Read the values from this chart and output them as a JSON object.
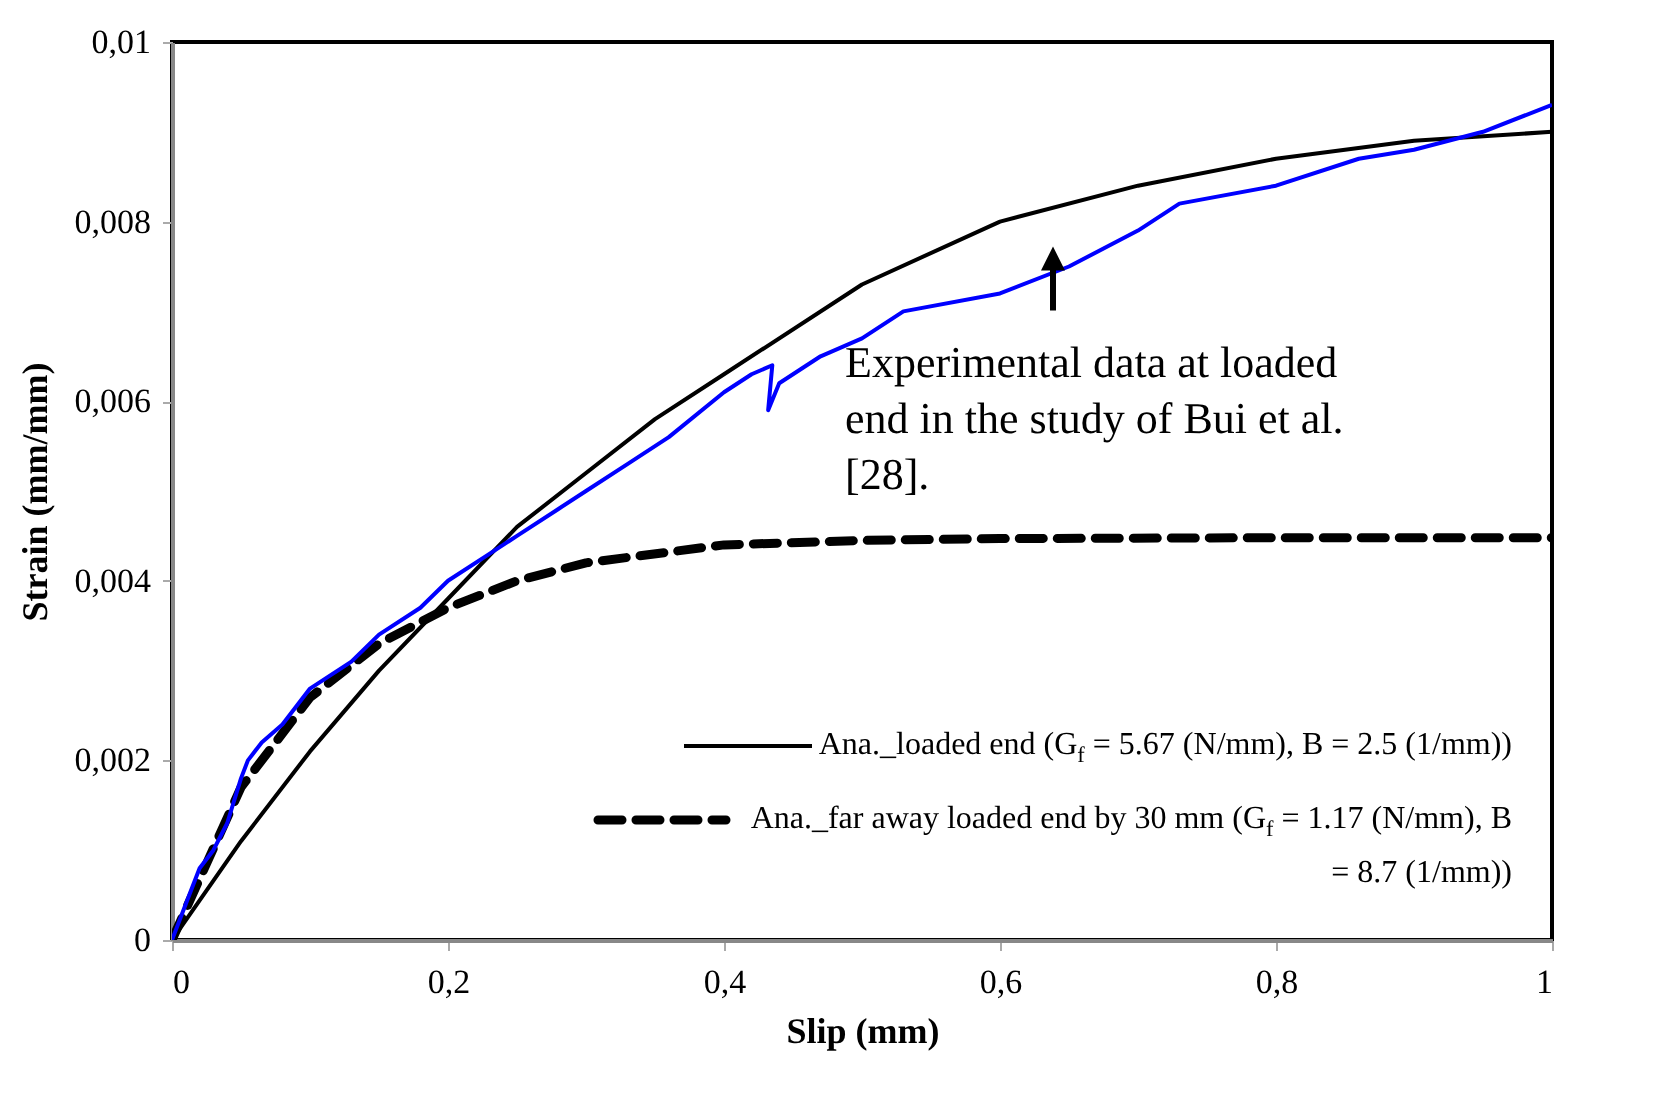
{
  "chart_data": {
    "type": "line",
    "xlabel": "Slip (mm)",
    "ylabel": "Strain (mm/mm)",
    "xlim": [
      0,
      1
    ],
    "ylim": [
      0,
      0.01
    ],
    "xticks": [
      0,
      {
        "value": 0.2,
        "label": "0,2"
      },
      {
        "value": 0.4,
        "label": "0,4"
      },
      {
        "value": 0.6,
        "label": "0,6"
      },
      {
        "value": 0.8,
        "label": "0,8"
      },
      1
    ],
    "yticks": [
      0,
      {
        "value": 0.002,
        "label": "0,002"
      },
      {
        "value": 0.004,
        "label": "0,004"
      },
      {
        "value": 0.006,
        "label": "0,006"
      },
      {
        "value": 0.008,
        "label": "0,008"
      },
      {
        "value": 0.01,
        "label": "0,01"
      }
    ],
    "grid": false,
    "legend": "bottom right",
    "marker": "none",
    "series": [
      {
        "color": "#0000ff",
        "line_style": "solid",
        "x": [
          0,
          0.01,
          0.02,
          0.03,
          0.04,
          0.05,
          0.055,
          0.065,
          0.08,
          0.1,
          0.13,
          0.15,
          0.18,
          0.2,
          0.23,
          0.25,
          0.28,
          0.3,
          0.33,
          0.36,
          0.4,
          0.42,
          0.435,
          0.432,
          0.44,
          0.47,
          0.5,
          0.53,
          0.6,
          0.65,
          0.7,
          0.73,
          0.8,
          0.86,
          0.9,
          0.95,
          1.0
        ],
        "values": [
          0,
          0.0004,
          0.0008,
          0.001,
          0.0013,
          0.0018,
          0.002,
          0.0022,
          0.0024,
          0.0028,
          0.0031,
          0.0034,
          0.0037,
          0.004,
          0.0043,
          0.0045,
          0.0048,
          0.005,
          0.0053,
          0.0056,
          0.0061,
          0.0063,
          0.0064,
          0.0059,
          0.0062,
          0.0065,
          0.0067,
          0.007,
          0.0072,
          0.0075,
          0.0079,
          0.0082,
          0.0084,
          0.0087,
          0.0088,
          0.009,
          0.0093
        ]
      },
      {
        "name": "Ana._loaded end (G$_{f}$ = 5.67 (N/mm), B = 2.5 (1/mm))",
        "color": "#000000",
        "line_style": "solid",
        "x": [
          0,
          0.05,
          0.1,
          0.15,
          0.2,
          0.25,
          0.3,
          0.35,
          0.4,
          0.5,
          0.6,
          0.7,
          0.8,
          0.9,
          1.0
        ],
        "values": [
          0,
          0.0011,
          0.0021,
          0.003,
          0.0038,
          0.0046,
          0.0052,
          0.0058,
          0.0063,
          0.0073,
          0.008,
          0.0084,
          0.0087,
          0.0089,
          0.009
        ]
      },
      {
        "name": "Ana._far away loaded end by 30 mm (G$_{f}$ = 1.17 (N/mm), B = 8.7 (1/mm))",
        "color": "#000000",
        "line_style": "dashed",
        "x": [
          0,
          0.05,
          0.1,
          0.15,
          0.2,
          0.25,
          0.3,
          0.4,
          0.5,
          0.6,
          0.8,
          1.0
        ],
        "values": [
          0,
          0.0017,
          0.0027,
          0.0033,
          0.0037,
          0.004,
          0.0042,
          0.0044,
          0.00445,
          0.00447,
          0.00448,
          0.00448
        ]
      }
    ],
    "annotations": [
      {
        "text": "Experimental data at loaded end in the study of Bui et al. [28].",
        "x": 0.65,
        "y": 0.0075
      }
    ]
  }
}
